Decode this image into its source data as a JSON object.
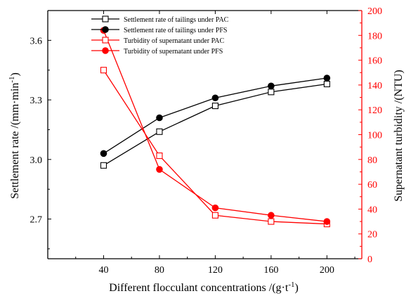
{
  "chart_data": {
    "type": "line",
    "x": [
      40,
      80,
      120,
      160,
      200
    ],
    "xlabel": "Different flocculant concentrations /(g·t",
    "xlabel_sup": "-1",
    "xlabel_close": ")",
    "xlim": [
      0,
      225
    ],
    "xticks": [
      40,
      80,
      120,
      160,
      200
    ],
    "ylabel_left": "Settlement rate /(mm·min",
    "ylabel_left_sup": "-1",
    "ylabel_left_close": ")",
    "ylim_left": [
      2.5,
      3.75
    ],
    "yticks_left": [
      "2.7",
      "3.0",
      "3.3",
      "3.6"
    ],
    "ylabel_right": "Supernatant turbidity /(NTU)",
    "ylim_right": [
      0,
      200
    ],
    "yticks_right": [
      "0",
      "20",
      "40",
      "60",
      "80",
      "100",
      "120",
      "140",
      "160",
      "180",
      "200"
    ],
    "right_axis_color": "#ff0000",
    "legend_position": "top-center",
    "series": [
      {
        "name": "Settlement rate of tailings under PAC",
        "axis": "left",
        "color": "#000000",
        "marker": "square-open",
        "values": [
          2.97,
          3.14,
          3.27,
          3.34,
          3.38
        ]
      },
      {
        "name": "Settlement rate of tailings under PFS",
        "axis": "left",
        "color": "#000000",
        "marker": "circle-filled",
        "values": [
          3.03,
          3.21,
          3.31,
          3.37,
          3.41
        ]
      },
      {
        "name": "Turbidity of supernatant under PAC",
        "axis": "right",
        "color": "#ff0000",
        "marker": "square-open",
        "values": [
          152,
          83,
          35,
          30,
          28
        ]
      },
      {
        "name": "Turbidity of supernatant under PFS",
        "axis": "right",
        "color": "#ff0000",
        "marker": "circle-filled",
        "values": [
          184,
          72,
          41,
          35,
          30
        ]
      }
    ]
  }
}
